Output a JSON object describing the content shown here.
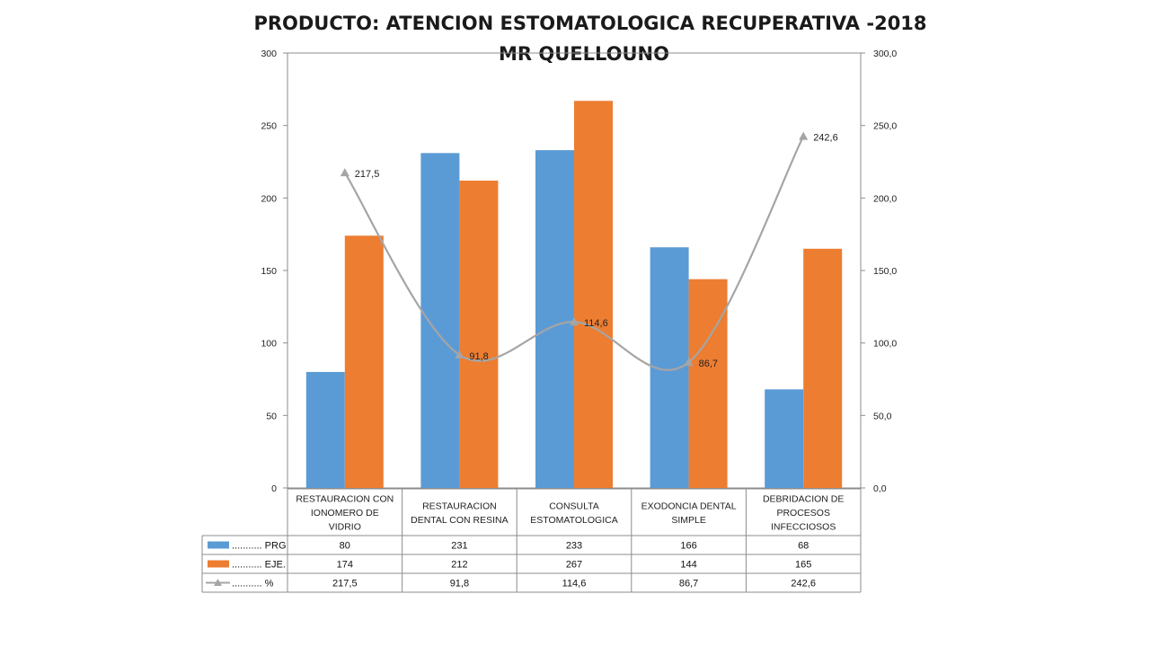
{
  "chart_data": {
    "type": "bar",
    "title_line1": "PRODUCTO: ATENCION ESTOMATOLOGICA RECUPERATIVA -2018",
    "title_line2": "MR QUELLOUNO",
    "categories": [
      [
        "RESTAURACION CON",
        "IONOMERO DE",
        "VIDRIO"
      ],
      [
        "RESTAURACION",
        "DENTAL CON RESINA"
      ],
      [
        "CONSULTA",
        "ESTOMATOLOGICA"
      ],
      [
        "EXODONCIA DENTAL",
        "SIMPLE"
      ],
      [
        "DEBRIDACION DE",
        "PROCESOS",
        "INFECCIOSOS"
      ]
    ],
    "series": [
      {
        "name": "........... PRG",
        "color": "#5B9BD5",
        "kind": "bar",
        "axis": "left",
        "values": [
          80,
          231,
          233,
          166,
          68
        ]
      },
      {
        "name": "........... EJE.",
        "color": "#ED7D31",
        "kind": "bar",
        "axis": "left",
        "values": [
          174,
          212,
          267,
          144,
          165
        ]
      },
      {
        "name": "........... %",
        "color": "#A5A5A5",
        "kind": "line",
        "axis": "right",
        "values": [
          217.5,
          91.8,
          114.6,
          86.7,
          242.6
        ],
        "labels": [
          "217,5",
          "91,8",
          "114,6",
          "86,7",
          "242,6"
        ]
      }
    ],
    "left_axis": {
      "ylim": [
        0,
        300
      ],
      "ticks": [
        "0",
        "50",
        "100",
        "150",
        "200",
        "250",
        "300"
      ]
    },
    "right_axis": {
      "ylim": [
        0,
        300
      ],
      "ticks": [
        "0,0",
        "50,0",
        "100,0",
        "150,0",
        "200,0",
        "250,0",
        "300,0"
      ]
    },
    "table_rows": [
      [
        "80",
        "231",
        "233",
        "166",
        "68"
      ],
      [
        "174",
        "212",
        "267",
        "144",
        "165"
      ],
      [
        "217,5",
        "91,8",
        "114,6",
        "86,7",
        "242,6"
      ]
    ],
    "grid": false,
    "legend": "data-table"
  }
}
